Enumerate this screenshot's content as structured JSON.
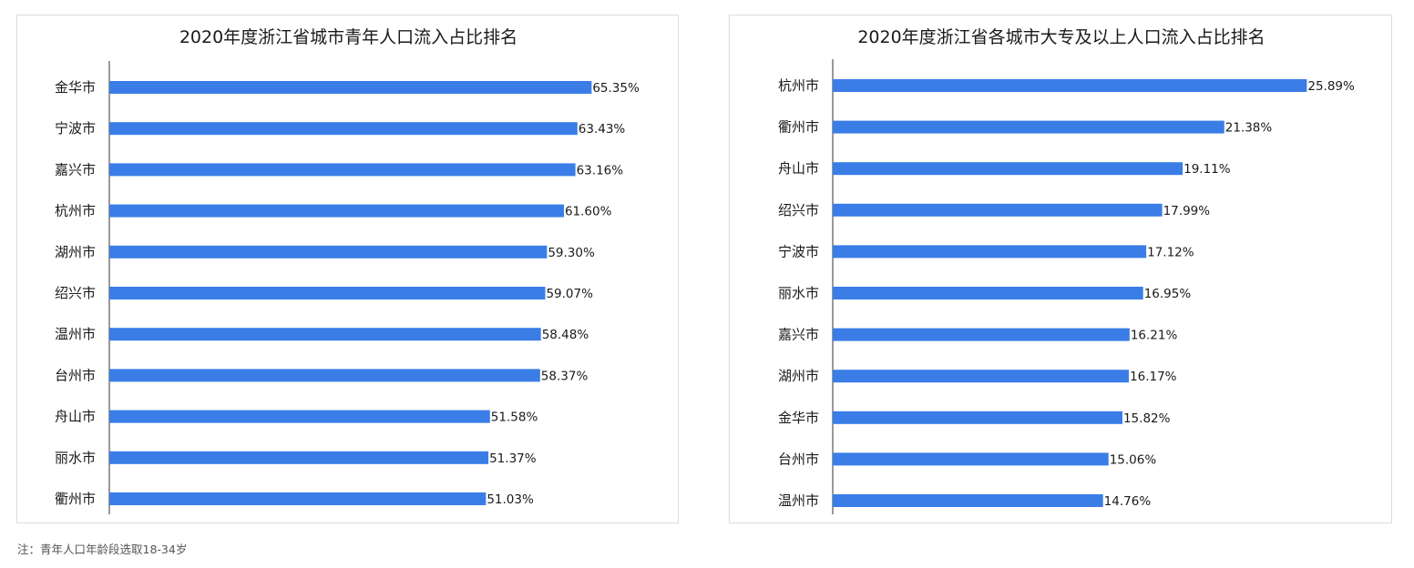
{
  "colors": {
    "bar": "#3a7de6",
    "axis": "#333333",
    "border": "#dcdcdc"
  },
  "chart_data": [
    {
      "type": "bar",
      "orientation": "horizontal",
      "title": "2020年度浙江省城市青年人口流入占比排名",
      "categories": [
        "金华市",
        "宁波市",
        "嘉兴市",
        "杭州市",
        "湖州市",
        "绍兴市",
        "温州市",
        "台州市",
        "舟山市",
        "丽水市",
        "衢州市"
      ],
      "values": [
        65.35,
        63.43,
        63.16,
        61.6,
        59.3,
        59.07,
        58.48,
        58.37,
        51.58,
        51.37,
        51.03
      ],
      "value_labels": [
        "65.35%",
        "63.43%",
        "63.16%",
        "61.60%",
        "59.30%",
        "59.07%",
        "58.48%",
        "58.37%",
        "51.58%",
        "51.37%",
        "51.03%"
      ],
      "grid": false,
      "legend": "none"
    },
    {
      "type": "bar",
      "orientation": "horizontal",
      "title": "2020年度浙江省各城市大专及以上人口流入占比排名",
      "categories": [
        "杭州市",
        "衢州市",
        "舟山市",
        "绍兴市",
        "宁波市",
        "丽水市",
        "嘉兴市",
        "湖州市",
        "金华市",
        "台州市",
        "温州市"
      ],
      "values": [
        25.89,
        21.38,
        19.11,
        17.99,
        17.12,
        16.95,
        16.21,
        16.17,
        15.82,
        15.06,
        14.76
      ],
      "value_labels": [
        "25.89%",
        "21.38%",
        "19.11%",
        "17.99%",
        "17.12%",
        "16.95%",
        "16.21%",
        "16.17%",
        "15.82%",
        "15.06%",
        "14.76%"
      ],
      "grid": false,
      "legend": "none"
    }
  ],
  "footnote": "注：青年人口年龄段选取18-34岁"
}
